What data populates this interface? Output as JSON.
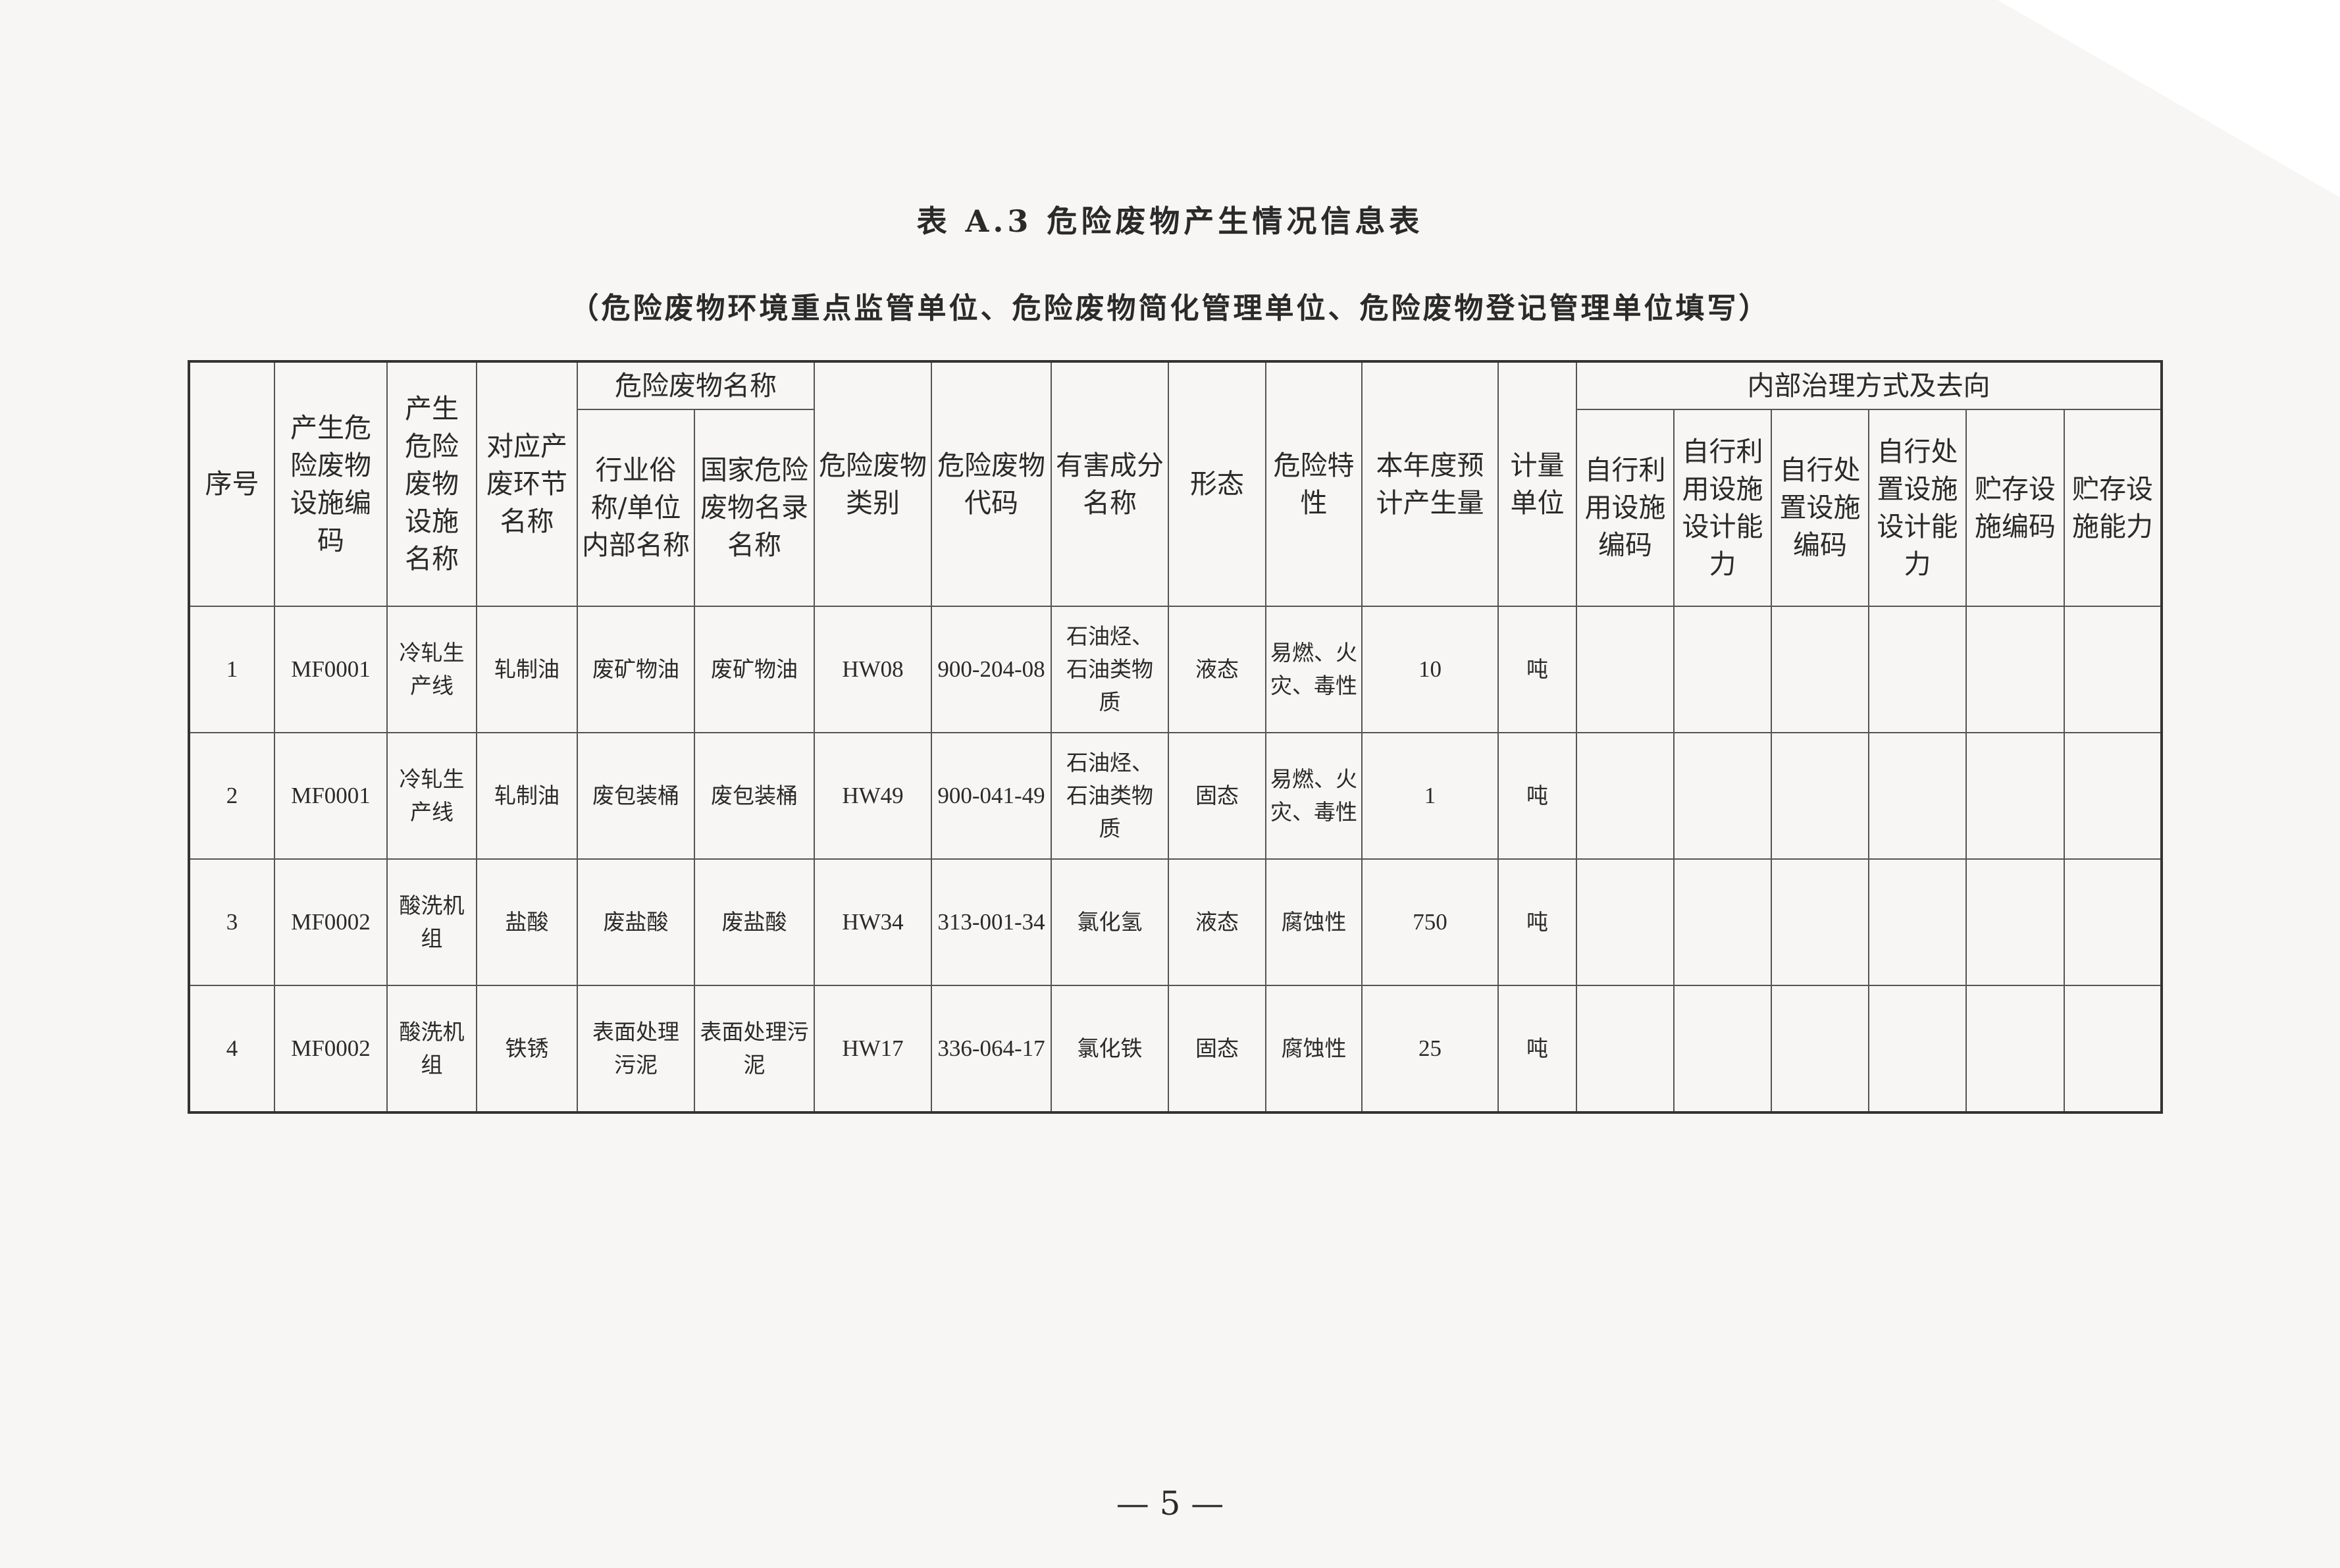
{
  "title": "表 A.3  危险废物产生情况信息表",
  "subtitle": "（危险废物环境重点监管单位、危险废物简化管理单位、危险废物登记管理单位填写）",
  "table": {
    "headers": {
      "seq": "序号",
      "facility_code": "产生危险废物设施编码",
      "facility_name": "产生危险废物设施名称",
      "process_name": "对应产废环节名称",
      "waste_name_group": "危险废物名称",
      "industry_name": "行业俗称/单位内部名称",
      "national_name": "国家危险废物名录名称",
      "category": "危险废物类别",
      "code": "危险废物代码",
      "component": "有害成分名称",
      "form": "形态",
      "hazard": "危险特性",
      "amount": "本年度预计产生量",
      "unit": "计量单位",
      "internal_group": "内部治理方式及去向",
      "self_use_code": "自行利用设施编码",
      "self_use_capacity": "自行利用设施设计能力",
      "self_dispose_code": "自行处置设施编码",
      "self_dispose_capacity": "自行处置设施设计能力",
      "storage_code": "贮存设施编码",
      "storage_capacity": "贮存设施能力"
    },
    "rows": [
      {
        "seq": "1",
        "facility_code": "MF0001",
        "facility_name": "冷轧生产线",
        "process_name": "轧制油",
        "industry_name": "废矿物油",
        "national_name": "废矿物油",
        "category": "HW08",
        "code": "900-204-08",
        "component": "石油烃、石油类物质",
        "form": "液态",
        "hazard": "易燃、火灾、毒性",
        "amount": "10",
        "unit": "吨",
        "self_use_code": "",
        "self_use_capacity": "",
        "self_dispose_code": "",
        "self_dispose_capacity": "",
        "storage_code": "",
        "storage_capacity": ""
      },
      {
        "seq": "2",
        "facility_code": "MF0001",
        "facility_name": "冷轧生产线",
        "process_name": "轧制油",
        "industry_name": "废包装桶",
        "national_name": "废包装桶",
        "category": "HW49",
        "code": "900-041-49",
        "component": "石油烃、石油类物质",
        "form": "固态",
        "hazard": "易燃、火灾、毒性",
        "amount": "1",
        "unit": "吨",
        "self_use_code": "",
        "self_use_capacity": "",
        "self_dispose_code": "",
        "self_dispose_capacity": "",
        "storage_code": "",
        "storage_capacity": ""
      },
      {
        "seq": "3",
        "facility_code": "MF0002",
        "facility_name": "酸洗机组",
        "process_name": "盐酸",
        "industry_name": "废盐酸",
        "national_name": "废盐酸",
        "category": "HW34",
        "code": "313-001-34",
        "component": "氯化氢",
        "form": "液态",
        "hazard": "腐蚀性",
        "amount": "750",
        "unit": "吨",
        "self_use_code": "",
        "self_use_capacity": "",
        "self_dispose_code": "",
        "self_dispose_capacity": "",
        "storage_code": "",
        "storage_capacity": ""
      },
      {
        "seq": "4",
        "facility_code": "MF0002",
        "facility_name": "酸洗机组",
        "process_name": "铁锈",
        "industry_name": "表面处理污泥",
        "national_name": "表面处理污泥",
        "category": "HW17",
        "code": "336-064-17",
        "component": "氯化铁",
        "form": "固态",
        "hazard": "腐蚀性",
        "amount": "25",
        "unit": "吨",
        "self_use_code": "",
        "self_use_capacity": "",
        "self_dispose_code": "",
        "self_dispose_capacity": "",
        "storage_code": "",
        "storage_capacity": ""
      }
    ]
  },
  "page_number": "— 5 —"
}
